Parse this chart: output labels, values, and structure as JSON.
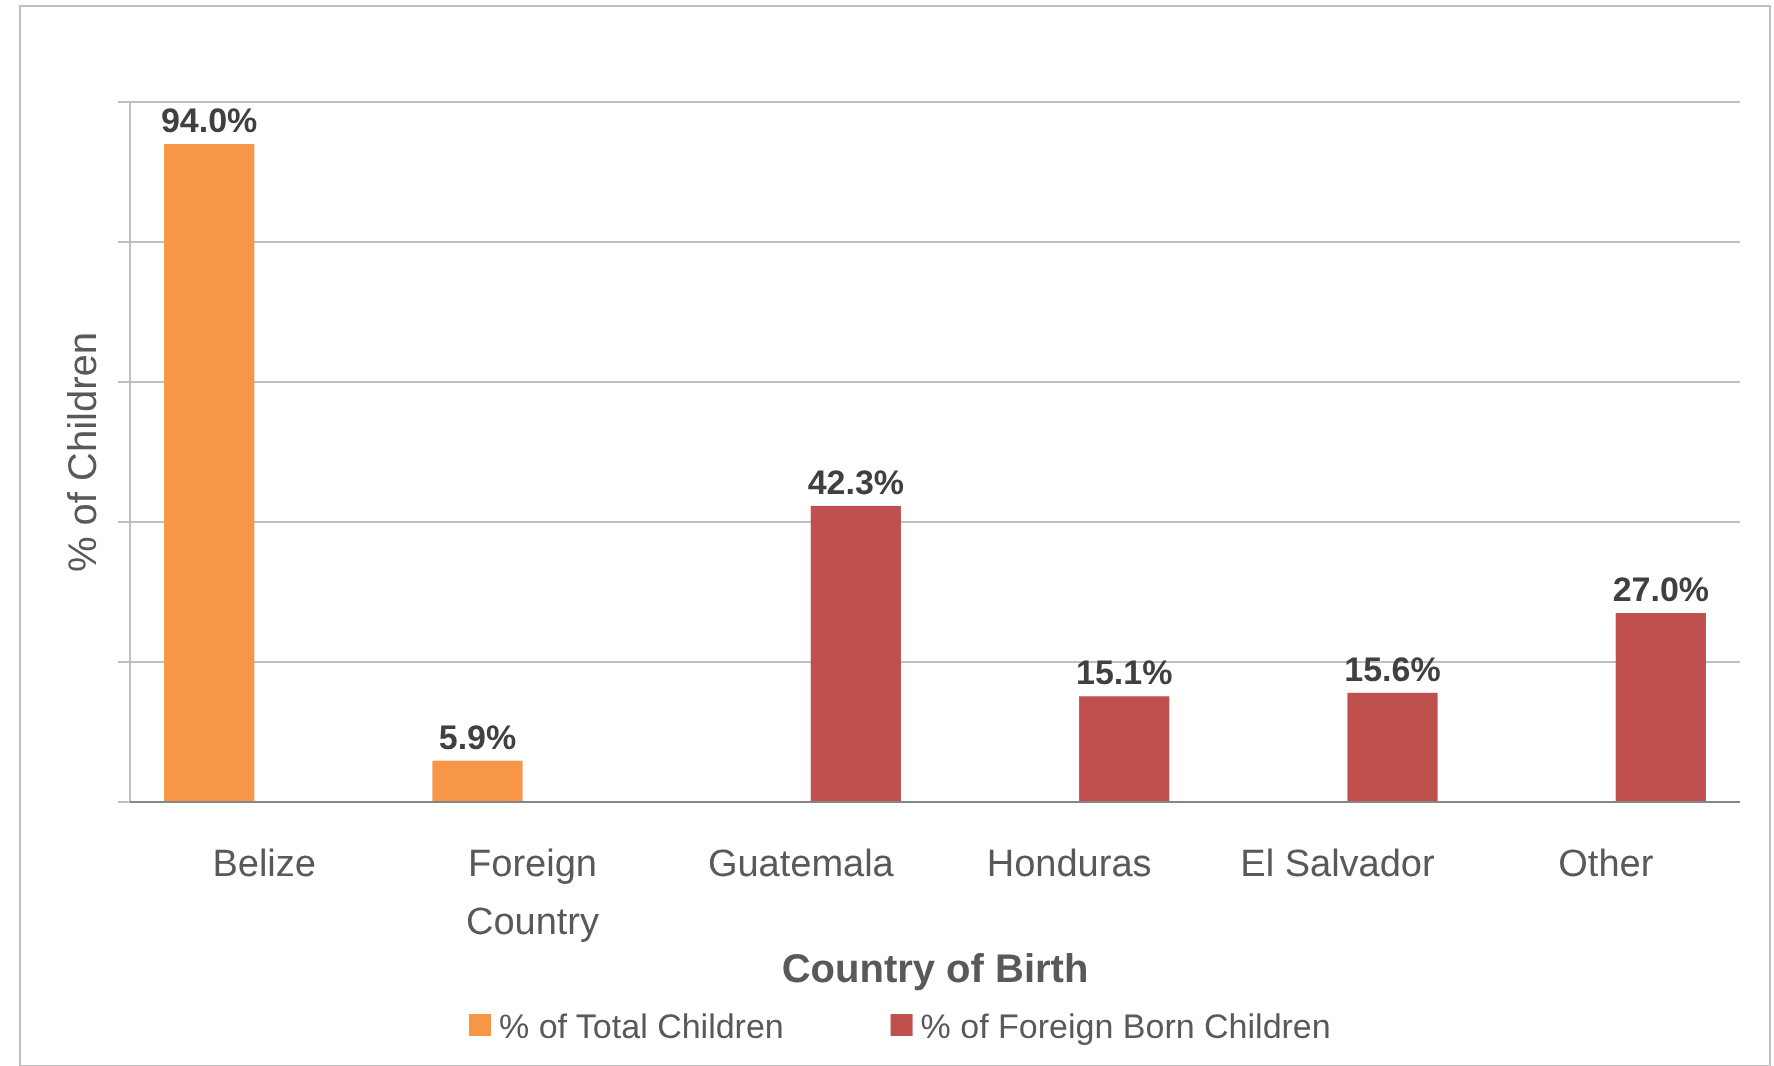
{
  "chart_data": {
    "type": "bar",
    "xlabel": "Country of Birth",
    "ylabel": "% of Children",
    "categories": [
      "Belize",
      "Foreign Country",
      "Guatemala",
      "Honduras",
      "El Salvador",
      "Other"
    ],
    "series": [
      {
        "name": "% of Total Children",
        "color": "#f79646",
        "values": [
          94.0,
          5.9,
          null,
          null,
          null,
          null
        ],
        "value_labels": [
          "94.0%",
          "5.9%",
          null,
          null,
          null,
          null
        ]
      },
      {
        "name": "% of Foreign Born Children",
        "color": "#c0504d",
        "values": [
          null,
          null,
          42.3,
          15.1,
          15.6,
          27.0
        ],
        "value_labels": [
          null,
          null,
          "42.3%",
          "15.1%",
          "15.6%",
          "27.0%"
        ]
      }
    ],
    "ylim": [
      0,
      100
    ],
    "yticks": [
      {
        "value": 0,
        "label": null
      },
      {
        "value": 20,
        "label": null
      },
      {
        "value": 40,
        "label": null
      },
      {
        "value": 60,
        "label": null
      },
      {
        "value": 80,
        "label": null
      },
      {
        "value": 100,
        "label": null
      }
    ],
    "grid": "y",
    "legend": "bottom"
  }
}
